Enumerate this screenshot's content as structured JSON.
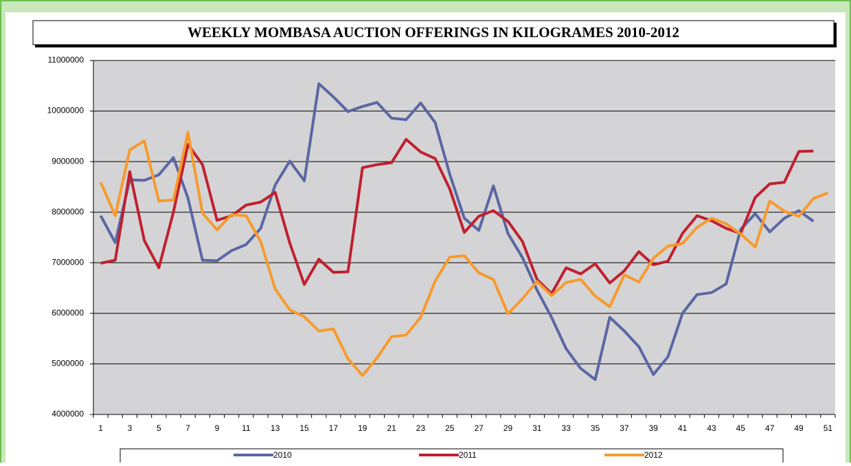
{
  "chart_data": {
    "type": "line",
    "title": "WEEKLY MOMBASA AUCTION OFFERINGS IN KILOGRAMES 2010-2012",
    "categories": [
      1,
      null,
      3,
      null,
      5,
      null,
      7,
      null,
      9,
      null,
      11,
      null,
      13,
      null,
      15,
      null,
      17,
      null,
      19,
      null,
      21,
      null,
      23,
      null,
      25,
      null,
      27,
      null,
      29,
      null,
      31,
      null,
      33,
      null,
      35,
      null,
      37,
      null,
      39,
      null,
      41,
      null,
      43,
      null,
      45,
      null,
      47,
      null,
      49,
      null,
      51
    ],
    "series": [
      {
        "name": "2010",
        "color": "#5b67a3",
        "values": [
          7930000,
          7400000,
          8640000,
          8630000,
          8740000,
          9080000,
          8280000,
          7050000,
          7040000,
          7240000,
          7360000,
          7680000,
          8540000,
          9010000,
          8620000,
          10540000,
          10280000,
          9990000,
          10090000,
          10170000,
          9860000,
          9830000,
          10160000,
          9770000,
          8750000,
          7880000,
          7640000,
          8520000,
          7580000,
          7100000,
          6460000,
          5920000,
          5300000,
          4910000,
          4690000,
          5920000,
          5650000,
          5340000,
          4790000,
          5140000,
          6000000,
          6370000,
          6410000,
          6580000,
          7660000,
          7970000,
          7610000,
          7880000,
          8030000,
          7820000,
          null
        ]
      },
      {
        "name": "2011",
        "color": "#c0202f",
        "values": [
          6990000,
          7050000,
          8800000,
          7440000,
          6900000,
          8000000,
          9340000,
          8940000,
          7840000,
          7930000,
          8140000,
          8200000,
          8390000,
          7390000,
          6570000,
          7070000,
          6810000,
          6820000,
          8880000,
          8940000,
          8980000,
          9440000,
          9190000,
          9060000,
          8460000,
          7600000,
          7920000,
          8030000,
          7820000,
          7420000,
          6670000,
          6390000,
          6900000,
          6780000,
          6980000,
          6600000,
          6840000,
          7220000,
          6960000,
          7030000,
          7580000,
          7930000,
          7830000,
          7680000,
          7580000,
          8290000,
          8560000,
          8590000,
          9200000,
          9210000,
          null
        ]
      },
      {
        "name": "2012",
        "color": "#f79a2c",
        "values": [
          8590000,
          7930000,
          9230000,
          9410000,
          8220000,
          8240000,
          9580000,
          7980000,
          7650000,
          7950000,
          7930000,
          7420000,
          6480000,
          6070000,
          5930000,
          5650000,
          5690000,
          5100000,
          4770000,
          5120000,
          5540000,
          5570000,
          5920000,
          6640000,
          7110000,
          7140000,
          6800000,
          6670000,
          5990000,
          6290000,
          6630000,
          6350000,
          6610000,
          6670000,
          6340000,
          6130000,
          6760000,
          6620000,
          7090000,
          7330000,
          7380000,
          7700000,
          7880000,
          7770000,
          7570000,
          7310000,
          8220000,
          8020000,
          7920000,
          8270000,
          8380000
        ]
      }
    ],
    "ylim": [
      4000000,
      11000000
    ],
    "yticks": [
      4000000,
      5000000,
      6000000,
      7000000,
      8000000,
      9000000,
      10000000,
      11000000
    ],
    "grid": true,
    "legend": "bottom"
  }
}
